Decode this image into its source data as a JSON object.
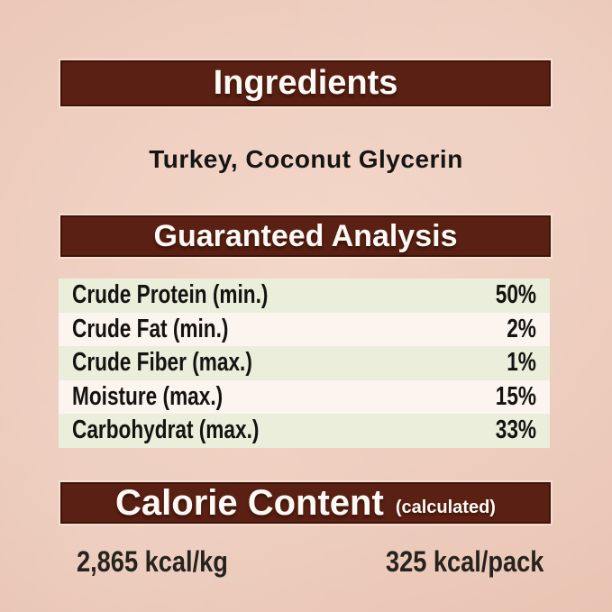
{
  "ingredients": {
    "title": "Ingredients",
    "list": "Turkey, Coconut Glycerin"
  },
  "guaranteed_analysis": {
    "title": "Guaranteed Analysis",
    "rows": [
      {
        "name": "Crude Protein (min.)",
        "value": "50%"
      },
      {
        "name": "Crude Fat (min.)",
        "value": "2%"
      },
      {
        "name": "Crude Fiber (max.)",
        "value": "1%"
      },
      {
        "name": "Moisture (max.)",
        "value": "15%"
      },
      {
        "name": "Carbohydrat (max.)",
        "value": "33%"
      }
    ]
  },
  "calorie_content": {
    "title": "Calorie Content",
    "qualifier": "(calculated)",
    "per_kg": "2,865 kcal/kg",
    "per_pack": "325 kcal/pack"
  },
  "colors": {
    "header_bar_brown": "#5a2013",
    "header_bar_border": "#3f1408",
    "background_pink": "#edccbd",
    "row_stripe_green": "#ebeeda",
    "row_stripe_light": "#fcf4ef",
    "text_dark": "#141312",
    "header_text": "#fdfaf5"
  }
}
